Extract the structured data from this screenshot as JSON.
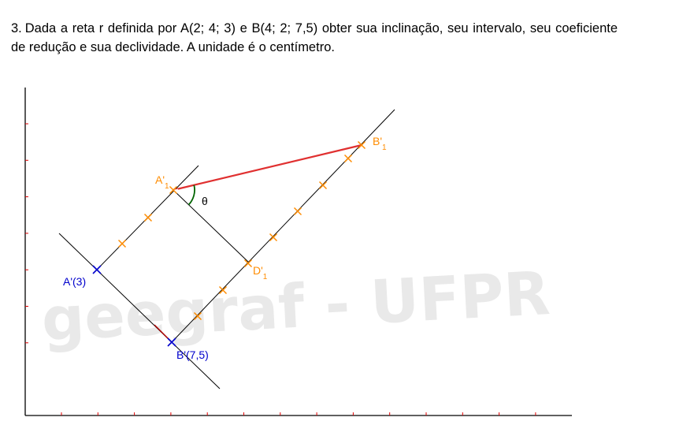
{
  "problem": {
    "number": "3.",
    "text": "Dada a reta r definida por A(2; 4; 3) e B(4; 2; 7,5) obter sua inclinação, seu intervalo, seu coeficiente de redução e sua declividade. A unidade é o centímetro."
  },
  "watermark": "geegraf - UFPR",
  "figure": {
    "labels": {
      "a_line": "A'(3)",
      "b_line": "B'(7,5)",
      "a1_main": "A'",
      "a1_sub": "1",
      "b1_main": "B'",
      "b1_sub": "1",
      "d1_main": "D'",
      "d1_sub": "1",
      "theta": "θ"
    },
    "colors": {
      "axis": "#000000",
      "tick": "#e00000",
      "construction": "#000000",
      "true_length": "#e03030",
      "division_mark": "#ff8c00",
      "point_mark": "#0000cc",
      "angle": "#006400",
      "label_orange": "#ff8c00",
      "label_blue": "#0000cc"
    }
  }
}
